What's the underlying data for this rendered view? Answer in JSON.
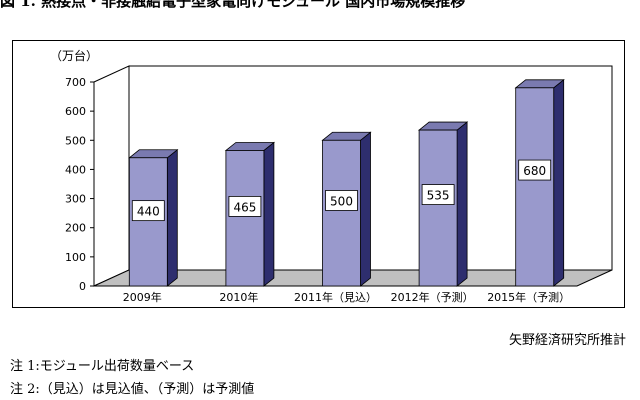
{
  "title": "図 1. 熱接点・非接触結電子型家電向けモジュール 国内市場規模推移",
  "chart_data": {
    "type": "bar",
    "style": "3d",
    "unit_label": "（万台）",
    "categories": [
      "2009年",
      "2010年",
      "2011年（見込）",
      "2012年（予測）",
      "2015年（予測）"
    ],
    "values": [
      440,
      465,
      500,
      535,
      680
    ],
    "data_labels": [
      "440",
      "465",
      "500",
      "535",
      "680"
    ],
    "yticks": [
      "0",
      "100",
      "200",
      "300",
      "400",
      "500",
      "600",
      "700"
    ],
    "ylim": [
      0,
      700
    ],
    "grid": false,
    "colors": {
      "bar_front": "#9999cc",
      "bar_side": "#2e2e6e",
      "bar_top": "#7a7ab0",
      "floor": "#c0c0c0",
      "wall": "#ffffff"
    }
  },
  "source": "矢野経済研究所推計",
  "notes": [
    "注 1:モジュール出荷数量ベース",
    "注 2:（見込）は見込値、（予測）は予測値"
  ]
}
